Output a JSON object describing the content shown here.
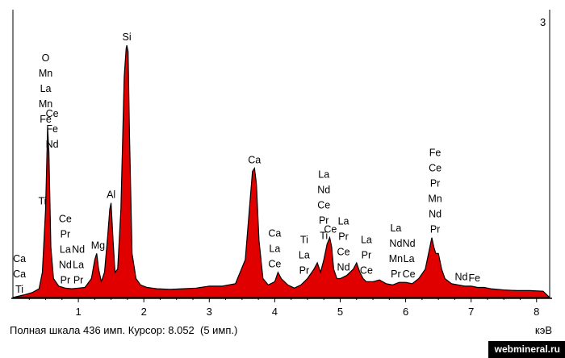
{
  "chart_data": {
    "type": "area",
    "xlabel": "кэВ",
    "xlim": [
      0,
      8.2
    ],
    "xticks": [
      1,
      2,
      3,
      4,
      5,
      6,
      7,
      8
    ],
    "ylim": [
      0,
      436
    ],
    "fill_color": "#e00000",
    "series": [
      {
        "x": [
          0.2,
          0.3,
          0.4,
          0.45,
          0.5,
          0.53,
          0.55,
          0.58,
          0.62,
          0.7,
          0.8,
          0.9,
          1.0,
          1.1,
          1.2,
          1.25,
          1.28,
          1.31,
          1.35,
          1.4,
          1.45,
          1.48,
          1.5,
          1.53,
          1.56,
          1.6,
          1.65,
          1.7,
          1.73,
          1.74,
          1.76,
          1.78,
          1.82,
          1.88,
          1.95,
          2.05,
          2.2,
          2.4,
          2.6,
          2.8,
          3.0,
          3.2,
          3.4,
          3.55,
          3.62,
          3.66,
          3.69,
          3.72,
          3.76,
          3.82,
          3.9,
          4.0,
          4.05,
          4.1,
          4.2,
          4.3,
          4.4,
          4.5,
          4.6,
          4.65,
          4.7,
          4.75,
          4.8,
          4.84,
          4.87,
          4.9,
          4.95,
          5.0,
          5.1,
          5.2,
          5.25,
          5.3,
          5.35,
          5.4,
          5.5,
          5.6,
          5.7,
          5.8,
          5.9,
          6.0,
          6.1,
          6.2,
          6.3,
          6.36,
          6.4,
          6.43,
          6.46,
          6.5,
          6.55,
          6.6,
          6.7,
          6.8,
          6.9,
          7.0,
          7.1,
          7.2,
          7.3,
          7.5,
          7.7,
          7.9,
          8.1
        ],
        "y": [
          5,
          8,
          14,
          40,
          140,
          270,
          230,
          80,
          30,
          18,
          15,
          14,
          15,
          16,
          30,
          60,
          70,
          45,
          25,
          40,
          100,
          140,
          150,
          90,
          40,
          45,
          140,
          350,
          395,
          400,
          390,
          260,
          70,
          30,
          20,
          16,
          14,
          13,
          14,
          15,
          18,
          18,
          22,
          60,
          150,
          200,
          205,
          180,
          90,
          30,
          20,
          25,
          40,
          30,
          20,
          15,
          20,
          30,
          45,
          55,
          40,
          60,
          85,
          95,
          80,
          45,
          30,
          30,
          35,
          45,
          55,
          40,
          30,
          25,
          25,
          28,
          22,
          20,
          24,
          24,
          22,
          30,
          45,
          75,
          95,
          80,
          70,
          70,
          45,
          30,
          22,
          20,
          18,
          18,
          16,
          16,
          14,
          12,
          11,
          11,
          10
        ]
      }
    ],
    "peak_labels": [
      {
        "x": 0.5,
        "labels": [
          "O",
          "Mn",
          "La",
          "Mn",
          "Fe"
        ]
      },
      {
        "x": 0.45,
        "labels": [
          "Ti"
        ]
      },
      {
        "x": 0.1,
        "labels": [
          "Ca",
          "Ca",
          "Ti"
        ]
      },
      {
        "x": 0.6,
        "labels": [
          "Ce",
          "Fe",
          "Nd"
        ]
      },
      {
        "x": 0.8,
        "labels": [
          "Ce",
          "Pr",
          "La",
          "Nd",
          "Pr"
        ]
      },
      {
        "x": 1.0,
        "labels": [
          "Nd",
          "La",
          "Pr"
        ]
      },
      {
        "x": 1.3,
        "labels": [
          "Mg"
        ]
      },
      {
        "x": 1.5,
        "labels": [
          "Al"
        ]
      },
      {
        "x": 1.74,
        "labels": [
          "Si"
        ]
      },
      {
        "x": 3.69,
        "labels": [
          "Ca"
        ]
      },
      {
        "x": 4.0,
        "labels": [
          "Ca",
          "La",
          "Ce"
        ]
      },
      {
        "x": 4.45,
        "labels": [
          "Ti",
          "La",
          "Pr"
        ]
      },
      {
        "x": 4.75,
        "labels": [
          "La",
          "Nd",
          "Ce",
          "Pr",
          "Ti"
        ]
      },
      {
        "x": 4.85,
        "labels": [
          "Ce"
        ]
      },
      {
        "x": 5.05,
        "labels": [
          "La",
          "Pr",
          "Ce",
          "Nd"
        ]
      },
      {
        "x": 5.4,
        "labels": [
          "La",
          "Pr",
          "Ce"
        ]
      },
      {
        "x": 5.85,
        "labels": [
          "La",
          "Nd",
          "Mn",
          "Pr"
        ]
      },
      {
        "x": 6.05,
        "labels": [
          "Nd",
          "La",
          "Ce"
        ]
      },
      {
        "x": 6.45,
        "labels": [
          "Fe",
          "Ce",
          "Pr",
          "Mn",
          "Nd",
          "Pr"
        ]
      },
      {
        "x": 6.85,
        "labels": [
          "Nd"
        ]
      },
      {
        "x": 7.05,
        "labels": [
          "Fe"
        ]
      }
    ]
  },
  "status": {
    "text": "Полная шкала 436 имп. Курсор: 8.052  (5 имп.)"
  },
  "corner_marker": "3",
  "watermark": "webmineral.ru"
}
